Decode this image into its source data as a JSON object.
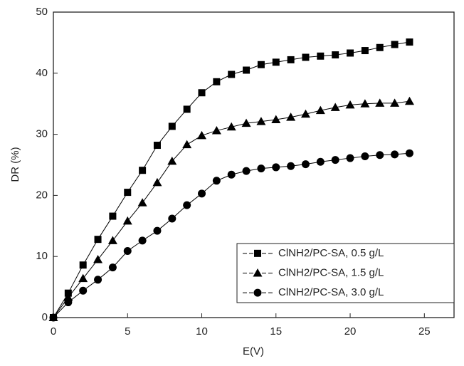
{
  "chart_data": {
    "type": "line",
    "x_label": "E(V)",
    "y_label": "DR (%)",
    "x": [
      0,
      1,
      2,
      3,
      4,
      5,
      6,
      7,
      8,
      9,
      10,
      11,
      12,
      13,
      14,
      15,
      16,
      17,
      18,
      19,
      20,
      21,
      22,
      23,
      24
    ],
    "series": [
      {
        "name": "ClNH2/PC-SA, 0.5 g/L",
        "color": "#000000",
        "marker": "square",
        "values": [
          0,
          4,
          8.6,
          12.8,
          16.6,
          20.5,
          24.1,
          28.2,
          31.3,
          34.1,
          36.8,
          38.6,
          39.8,
          40.5,
          41.4,
          41.8,
          42.2,
          42.6,
          42.8,
          43.0,
          43.3,
          43.7,
          44.2,
          44.7,
          45.1
        ]
      },
      {
        "name": "ClNH2/PC-SA, 1.5 g/L",
        "color": "#000000",
        "marker": "triangle",
        "values": [
          0,
          3.3,
          6.4,
          9.5,
          12.6,
          15.8,
          18.8,
          22.1,
          25.6,
          28.3,
          29.8,
          30.6,
          31.2,
          31.8,
          32.1,
          32.4,
          32.8,
          33.3,
          33.9,
          34.4,
          34.8,
          35.0,
          35.1,
          35.1,
          35.4
        ]
      },
      {
        "name": "ClNH2/PC-SA, 3.0 g/L",
        "color": "#000000",
        "marker": "circle",
        "values": [
          0,
          2.5,
          4.4,
          6.2,
          8.2,
          10.9,
          12.6,
          14.2,
          16.2,
          18.4,
          20.3,
          22.4,
          23.4,
          24.0,
          24.4,
          24.6,
          24.8,
          25.1,
          25.5,
          25.8,
          26.1,
          26.4,
          26.6,
          26.7,
          26.9
        ]
      }
    ],
    "xlim": [
      0,
      27
    ],
    "xticks": [
      0,
      5,
      10,
      15,
      20,
      25
    ],
    "ylim": [
      0,
      50
    ],
    "yticks": [
      0,
      10,
      20,
      30,
      40,
      50
    ],
    "legend": "lower right"
  }
}
